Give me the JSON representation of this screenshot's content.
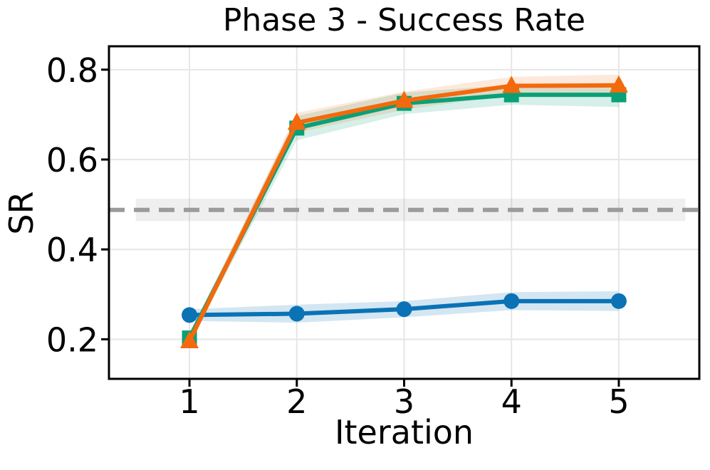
{
  "figure": {
    "title": "Phase 3 - Success Rate",
    "xlabel": "Iteration",
    "ylabel": "SR"
  },
  "colors": {
    "background": "#ffffff",
    "grid": "#e6e6e6",
    "spine": "#000000",
    "text": "#000000",
    "baseline_line": "#9b9b9b",
    "baseline_band": "#808080",
    "series_blue": "#0b72b5",
    "series_green": "#0aa077",
    "series_orange": "#f4690c"
  },
  "chart_data": {
    "type": "line",
    "title": "Phase 3 - Success Rate",
    "xlabel": "Iteration",
    "ylabel": "SR",
    "x": [
      1,
      2,
      3,
      4,
      5
    ],
    "xticks": [
      1,
      2,
      3,
      4,
      5
    ],
    "xtick_labels": [
      "1",
      "2",
      "3",
      "4",
      "5"
    ],
    "yticks": [
      0.2,
      0.4,
      0.6,
      0.8
    ],
    "ytick_labels": [
      "0.2",
      "0.4",
      "0.6",
      "0.8"
    ],
    "xlim": [
      0.25,
      5.75
    ],
    "ylim": [
      0.112,
      0.852
    ],
    "grid": true,
    "legend": false,
    "baseline": {
      "value": 0.488,
      "band_halfwidth": 0.025,
      "x_span": [
        0.5,
        5.62
      ],
      "style": "dashed",
      "color": "#9b9b9b"
    },
    "series": [
      {
        "id": "blue-circles",
        "marker": "circle",
        "color": "#0b72b5",
        "band_opacity": 0.18,
        "values": [
          0.254,
          0.257,
          0.267,
          0.285,
          0.285
        ],
        "band_halfwidth": [
          0.013,
          0.02,
          0.018,
          0.02,
          0.022
        ]
      },
      {
        "id": "green-squares",
        "marker": "square",
        "color": "#0aa077",
        "band_opacity": 0.17,
        "values": [
          0.203,
          0.67,
          0.725,
          0.744,
          0.744
        ],
        "band_halfwidth": [
          0.01,
          0.027,
          0.024,
          0.022,
          0.027
        ]
      },
      {
        "id": "orange-triangles",
        "marker": "triangle-up",
        "color": "#f4690c",
        "band_opacity": 0.15,
        "values": [
          0.196,
          0.682,
          0.731,
          0.764,
          0.765
        ],
        "band_halfwidth": [
          0.008,
          0.022,
          0.02,
          0.02,
          0.024
        ]
      }
    ]
  }
}
